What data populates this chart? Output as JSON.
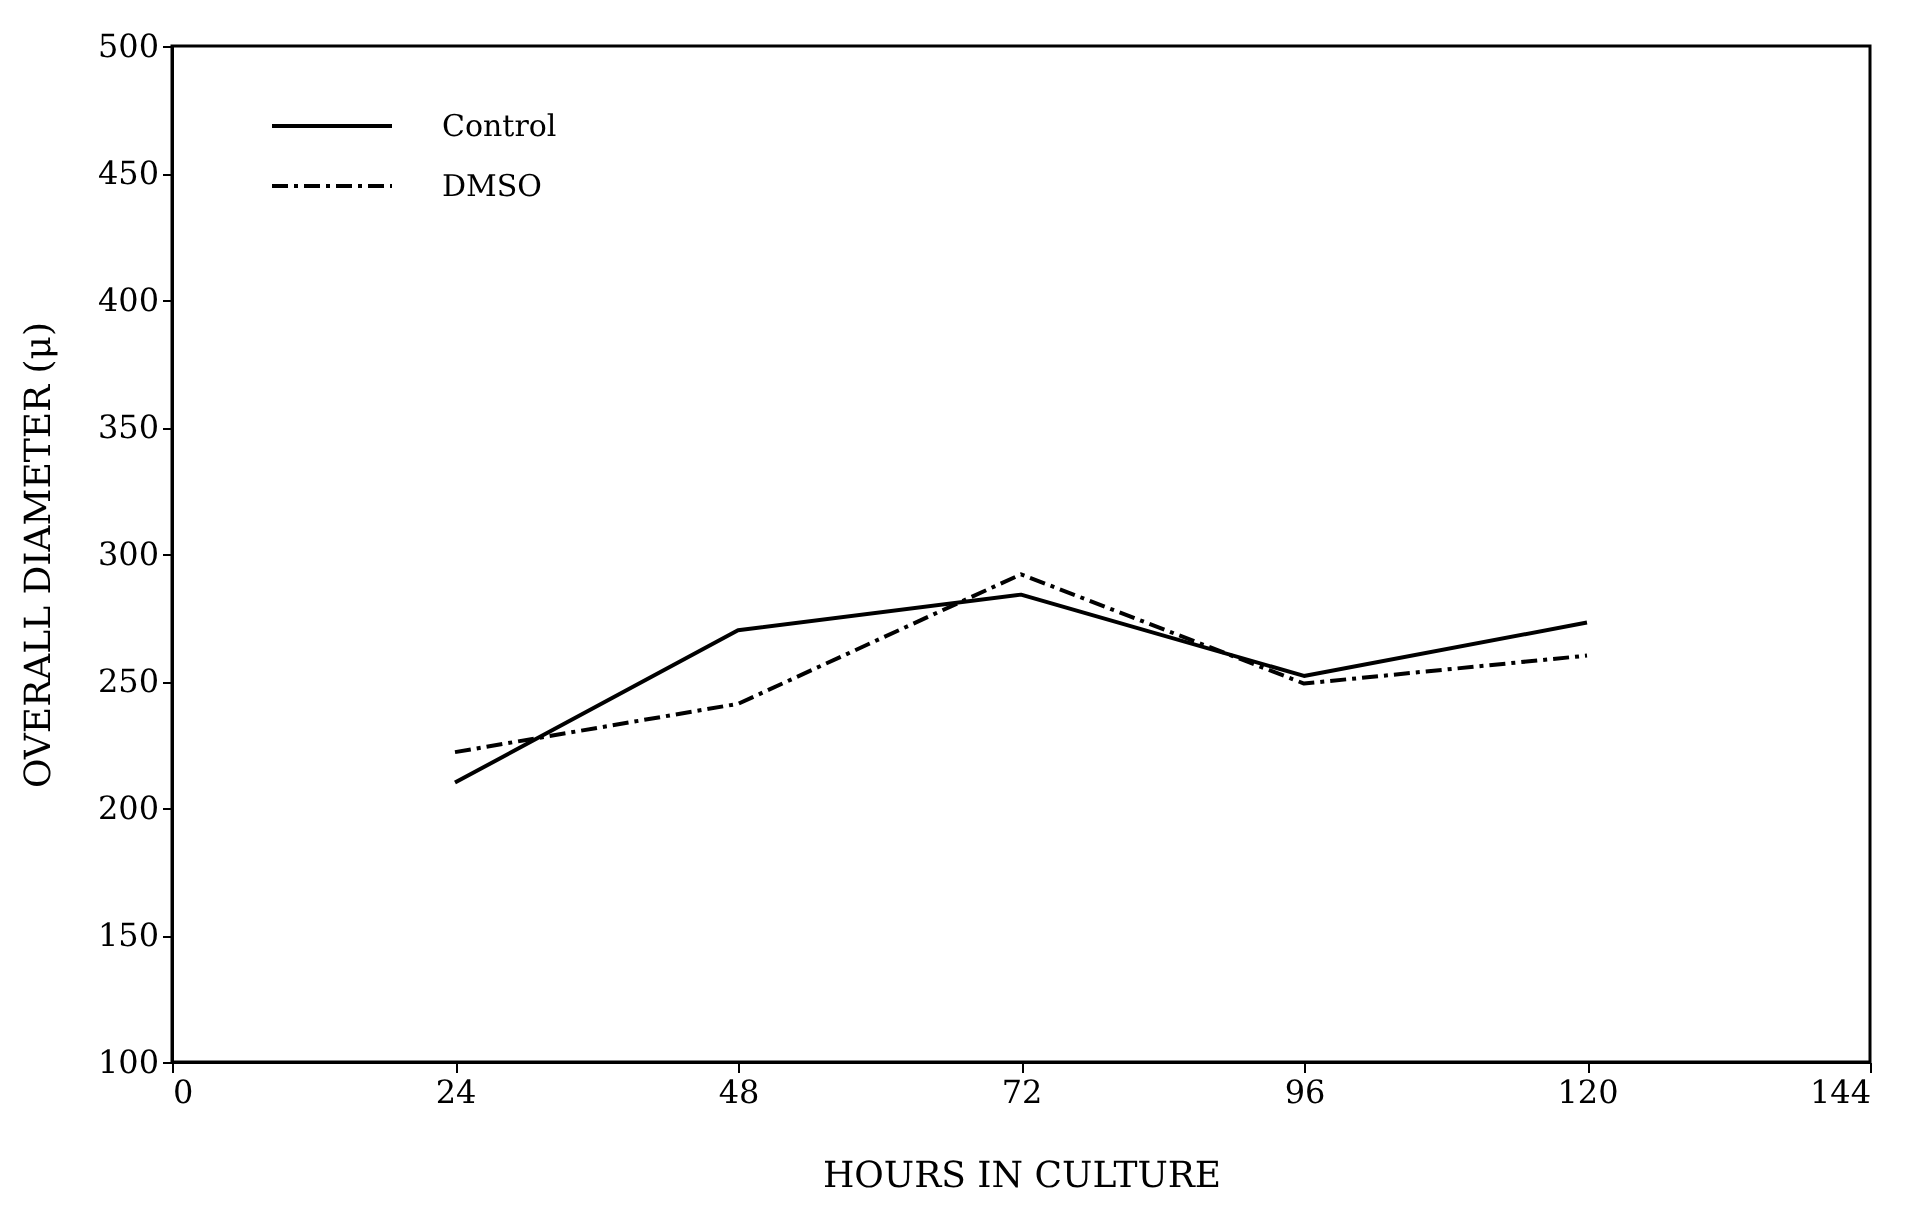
{
  "chart_data": {
    "type": "line",
    "xlabel": "HOURS IN CULTURE",
    "ylabel": "OVERALL DIAMETER (μ)",
    "x": [
      24,
      48,
      72,
      96,
      120
    ],
    "series": [
      {
        "name": "Control",
        "color": "#000000",
        "line_style": "solid",
        "values": [
          210,
          270,
          284,
          252,
          273
        ]
      },
      {
        "name": "DMSO",
        "color": "#000000",
        "line_style": "dashed",
        "values": [
          222,
          241,
          292,
          249,
          260
        ]
      }
    ],
    "xlim": [
      0,
      144
    ],
    "xticks": [
      0,
      24,
      48,
      72,
      96,
      120,
      144
    ],
    "ylim": [
      100,
      500
    ],
    "yticks": [
      100,
      150,
      200,
      250,
      300,
      350,
      400,
      450,
      500
    ],
    "grid": false,
    "legend": "top left",
    "marker": "none"
  }
}
